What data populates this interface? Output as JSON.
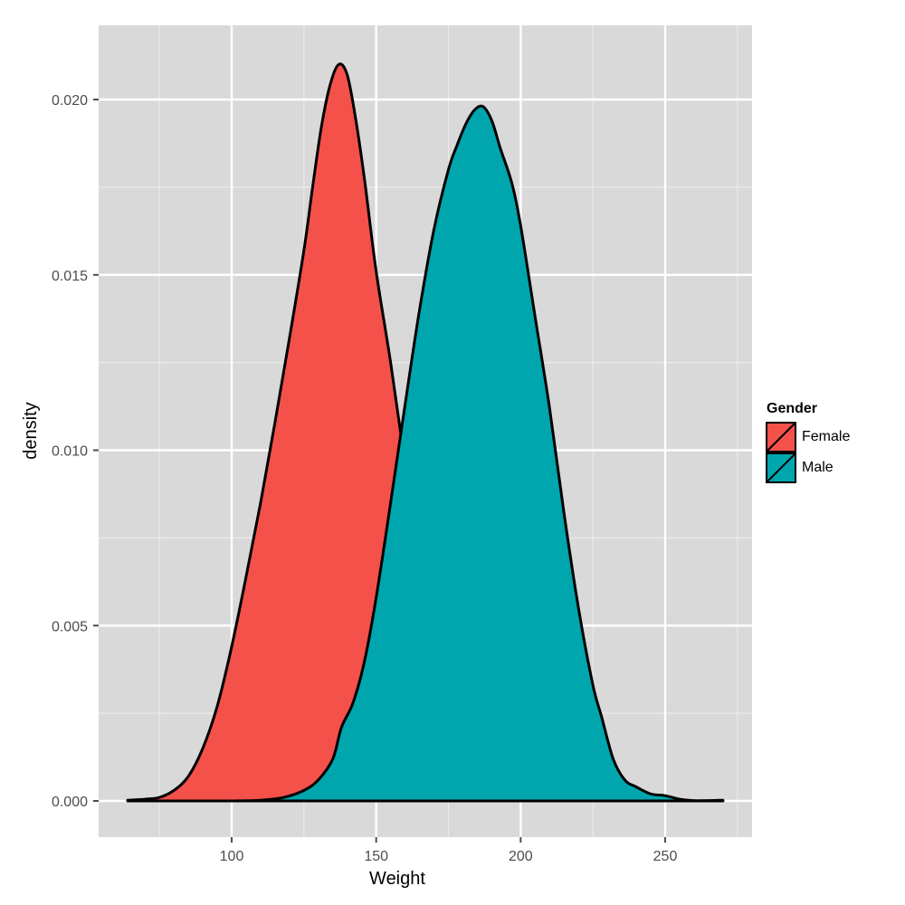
{
  "chart_data": {
    "type": "area",
    "subtype": "density",
    "title": "",
    "xlabel": "Weight",
    "ylabel": "density",
    "xlim": [
      64,
      272
    ],
    "ylim": [
      -0.001,
      0.0221
    ],
    "x_ticks": [
      100,
      150,
      200,
      250
    ],
    "x_tick_labels": [
      "100",
      "150",
      "200",
      "250"
    ],
    "x_minor_gridlines": [
      75,
      125,
      175,
      225,
      275
    ],
    "y_ticks": [
      0.0,
      0.005,
      0.01,
      0.015,
      0.02
    ],
    "y_tick_labels": [
      "0.000",
      "0.005",
      "0.010",
      "0.015",
      "0.020"
    ],
    "y_minor_gridlines": [
      0.0025,
      0.0075,
      0.0125,
      0.0175
    ],
    "grid": true,
    "background": "#d9d9d9",
    "legend": {
      "title": "Gender",
      "position": "right",
      "entries": [
        "Female",
        "Male"
      ]
    },
    "series": [
      {
        "name": "Female",
        "color": "#f4514b",
        "x": [
          64,
          70,
          75,
          80,
          85,
          90,
          95,
          100,
          105,
          110,
          115,
          120,
          125,
          128,
          131,
          134,
          137,
          140,
          143,
          146,
          150,
          155,
          160,
          165,
          170,
          175,
          180,
          185,
          190,
          195,
          200,
          210,
          220
        ],
        "y": [
          2e-05,
          5e-05,
          0.0001,
          0.0003,
          0.0007,
          0.0015,
          0.0027,
          0.0044,
          0.0064,
          0.0085,
          0.0108,
          0.0132,
          0.0157,
          0.0175,
          0.0192,
          0.0204,
          0.021,
          0.0207,
          0.0194,
          0.0177,
          0.0151,
          0.0125,
          0.0096,
          0.0068,
          0.0045,
          0.0028,
          0.0015,
          0.0008,
          0.0004,
          0.0002,
          0.0001,
          2e-05,
          0.0
        ]
      },
      {
        "name": "Male",
        "color": "#00a6ad",
        "x": [
          100,
          110,
          118,
          125,
          130,
          135,
          138,
          142,
          146,
          150,
          155,
          160,
          165,
          170,
          175,
          178,
          181,
          184,
          187,
          190,
          193,
          197,
          200,
          205,
          210,
          215,
          220,
          225,
          228,
          232,
          236,
          240,
          245,
          250,
          255,
          260,
          265,
          270
        ],
        "y": [
          0.0,
          2e-05,
          0.0001,
          0.0003,
          0.0006,
          0.0012,
          0.0021,
          0.0028,
          0.004,
          0.0058,
          0.0085,
          0.0113,
          0.014,
          0.0163,
          0.018,
          0.0187,
          0.0193,
          0.0197,
          0.0198,
          0.0194,
          0.0186,
          0.0176,
          0.0164,
          0.0138,
          0.0112,
          0.0082,
          0.0055,
          0.0033,
          0.0024,
          0.0012,
          0.0006,
          0.0004,
          0.0002,
          0.00015,
          5e-05,
          1e-05,
          1e-05,
          2e-05
        ]
      }
    ]
  }
}
